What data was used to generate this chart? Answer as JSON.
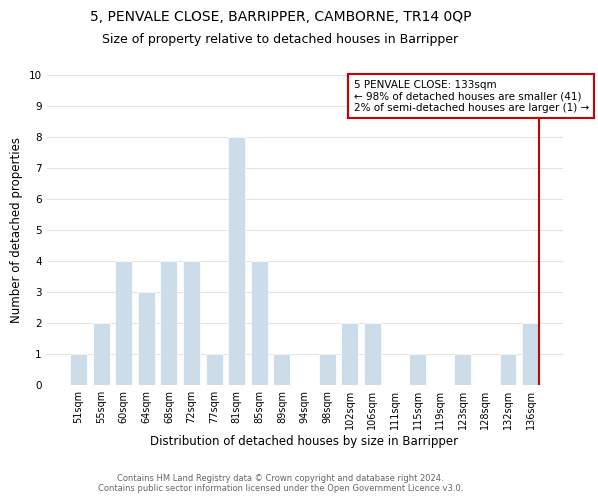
{
  "title": "5, PENVALE CLOSE, BARRIPPER, CAMBORNE, TR14 0QP",
  "subtitle": "Size of property relative to detached houses in Barripper",
  "xlabel": "Distribution of detached houses by size in Barripper",
  "ylabel": "Number of detached properties",
  "bar_labels": [
    "51sqm",
    "55sqm",
    "60sqm",
    "64sqm",
    "68sqm",
    "72sqm",
    "77sqm",
    "81sqm",
    "85sqm",
    "89sqm",
    "94sqm",
    "98sqm",
    "102sqm",
    "106sqm",
    "111sqm",
    "115sqm",
    "119sqm",
    "123sqm",
    "128sqm",
    "132sqm",
    "136sqm"
  ],
  "bar_values": [
    1,
    2,
    4,
    3,
    4,
    4,
    1,
    8,
    4,
    1,
    0,
    1,
    2,
    2,
    0,
    1,
    0,
    1,
    0,
    1,
    2
  ],
  "bar_color": "#ccdce8",
  "grid_color": "#dddddd",
  "annotation_line1": "5 PENVALE CLOSE: 133sqm",
  "annotation_line2": "← 98% of detached houses are smaller (41)",
  "annotation_line3": "2% of semi-detached houses are larger (1) →",
  "annotation_box_facecolor": "#ffffff",
  "annotation_box_edgecolor": "#cc0000",
  "vline_color": "#cc0000",
  "ylim": [
    0,
    10
  ],
  "footer1": "Contains HM Land Registry data © Crown copyright and database right 2024.",
  "footer2": "Contains public sector information licensed under the Open Government Licence v3.0.",
  "title_fontsize": 10,
  "subtitle_fontsize": 9,
  "axis_label_fontsize": 8.5,
  "tick_fontsize": 7,
  "annotation_fontsize": 7.5,
  "footer_fontsize": 6
}
